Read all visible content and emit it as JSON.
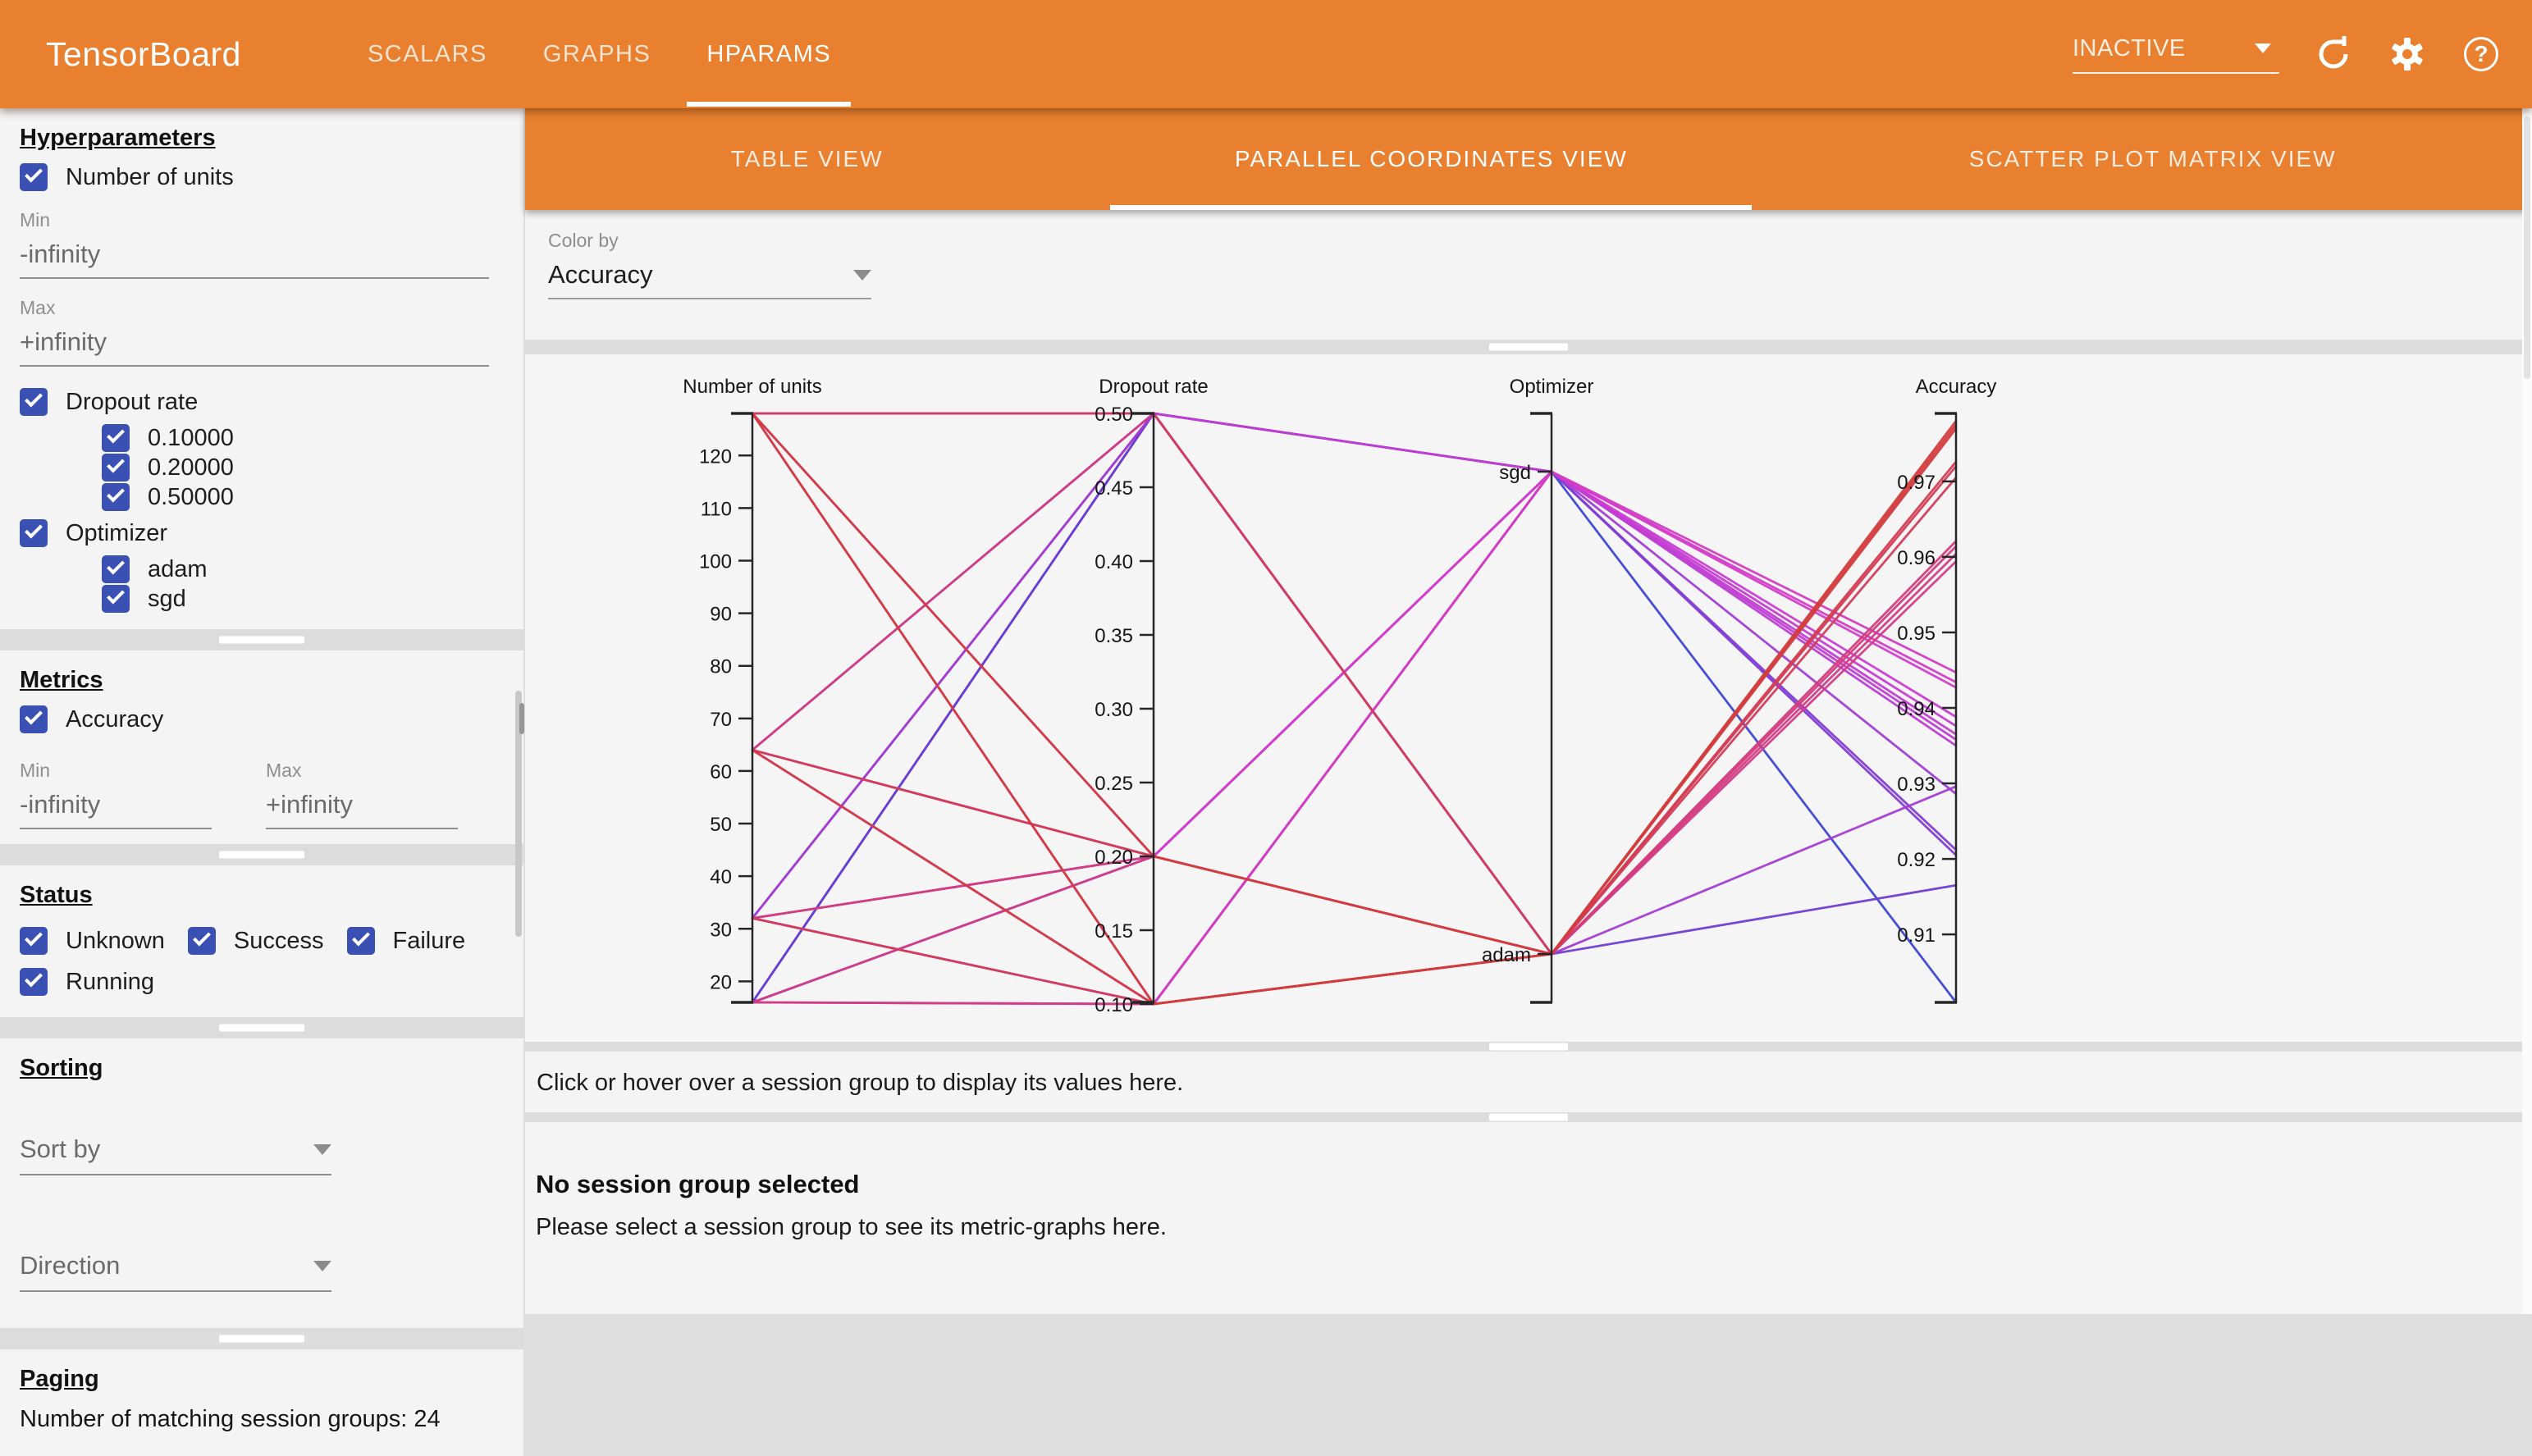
{
  "topbar": {
    "logo": "TensorBoard",
    "tabs": [
      {
        "label": "SCALARS",
        "active": false
      },
      {
        "label": "GRAPHS",
        "active": false
      },
      {
        "label": "HPARAMS",
        "active": true
      }
    ],
    "status_dropdown": {
      "value": "INACTIVE"
    },
    "help_glyph": "?",
    "accent_color": "#e8802f"
  },
  "sidebar": {
    "hyperparameters": {
      "title": "Hyperparameters",
      "number_of_units": {
        "label": "Number of units",
        "checked": true
      },
      "min_field": {
        "label": "Min",
        "value": "-infinity"
      },
      "max_field": {
        "label": "Max",
        "value": "+infinity"
      },
      "dropout": {
        "label": "Dropout rate",
        "checked": true,
        "values": [
          "0.10000",
          "0.20000",
          "0.50000"
        ]
      },
      "optimizer": {
        "label": "Optimizer",
        "checked": true,
        "values": [
          "adam",
          "sgd"
        ]
      }
    },
    "metrics": {
      "title": "Metrics",
      "accuracy": {
        "label": "Accuracy",
        "checked": true
      },
      "min_field": {
        "label": "Min",
        "value": "-infinity"
      },
      "max_field": {
        "label": "Max",
        "value": "+infinity"
      }
    },
    "status": {
      "title": "Status",
      "options": [
        {
          "label": "Unknown",
          "checked": true
        },
        {
          "label": "Success",
          "checked": true
        },
        {
          "label": "Failure",
          "checked": true
        },
        {
          "label": "Running",
          "checked": true
        }
      ]
    },
    "sorting": {
      "title": "Sorting",
      "sort_by": {
        "label": "Sort by"
      },
      "direction": {
        "label": "Direction"
      }
    },
    "paging": {
      "title": "Paging",
      "text": "Number of matching session groups: 24"
    }
  },
  "main": {
    "view_tabs": [
      {
        "label": "TABLE VIEW",
        "active": false
      },
      {
        "label": "PARALLEL COORDINATES VIEW",
        "active": true
      },
      {
        "label": "SCATTER PLOT MATRIX VIEW",
        "active": false
      }
    ],
    "color_by": {
      "label": "Color by",
      "value": "Accuracy"
    },
    "info_bar": "Click or hover over a session group to display its values here.",
    "detail": {
      "title": "No session group selected",
      "body": "Please select a session group to see its metric-graphs here."
    }
  },
  "chart_data": {
    "type": "parallel_coordinates",
    "color_by": "Accuracy",
    "colormap": {
      "low_color_hue": 236,
      "high_color_hue": 360,
      "min_value": 0.901,
      "max_value": 0.978
    },
    "axes": [
      {
        "name": "Number of units",
        "type": "numeric",
        "domain": [
          16,
          128
        ],
        "tick_values": [
          20,
          30,
          40,
          50,
          60,
          70,
          80,
          90,
          100,
          110,
          120
        ],
        "tick_labels": [
          "20",
          "30",
          "40",
          "50",
          "60",
          "70",
          "80",
          "90",
          "100",
          "110",
          "120"
        ]
      },
      {
        "name": "Dropout rate",
        "type": "numeric",
        "domain": [
          0.1,
          0.5
        ],
        "tick_values": [
          0.1,
          0.15,
          0.2,
          0.25,
          0.3,
          0.35,
          0.4,
          0.45,
          0.5
        ],
        "tick_labels": [
          "0.10",
          "0.15",
          "0.20",
          "0.25",
          "0.30",
          "0.35",
          "0.40",
          "0.45",
          "0.50"
        ]
      },
      {
        "name": "Optimizer",
        "type": "categorical",
        "categories": [
          "sgd",
          "adam"
        ]
      },
      {
        "name": "Accuracy",
        "type": "numeric",
        "domain": [
          0.901,
          0.979
        ],
        "tick_values": [
          0.91,
          0.92,
          0.93,
          0.94,
          0.95,
          0.96,
          0.97
        ],
        "tick_labels": [
          "0.91",
          "0.92",
          "0.93",
          "0.94",
          "0.95",
          "0.96",
          "0.97"
        ]
      }
    ],
    "sessions": [
      {
        "units": 128,
        "dropout": 0.1,
        "optimizer": "adam",
        "accuracy": 0.978
      },
      {
        "units": 128,
        "dropout": 0.2,
        "optimizer": "adam",
        "accuracy": 0.9775
      },
      {
        "units": 64,
        "dropout": 0.1,
        "optimizer": "adam",
        "accuracy": 0.977
      },
      {
        "units": 64,
        "dropout": 0.2,
        "optimizer": "adam",
        "accuracy": 0.9726
      },
      {
        "units": 32,
        "dropout": 0.1,
        "optimizer": "adam",
        "accuracy": 0.972
      },
      {
        "units": 128,
        "dropout": 0.5,
        "optimizer": "adam",
        "accuracy": 0.9705
      },
      {
        "units": 32,
        "dropout": 0.2,
        "optimizer": "adam",
        "accuracy": 0.9621
      },
      {
        "units": 16,
        "dropout": 0.1,
        "optimizer": "adam",
        "accuracy": 0.9614
      },
      {
        "units": 64,
        "dropout": 0.5,
        "optimizer": "adam",
        "accuracy": 0.9604
      },
      {
        "units": 16,
        "dropout": 0.2,
        "optimizer": "adam",
        "accuracy": 0.9594
      },
      {
        "units": 32,
        "dropout": 0.5,
        "optimizer": "adam",
        "accuracy": 0.9296
      },
      {
        "units": 16,
        "dropout": 0.5,
        "optimizer": "adam",
        "accuracy": 0.9165
      },
      {
        "units": 128,
        "dropout": 0.1,
        "optimizer": "sgd",
        "accuracy": 0.9447
      },
      {
        "units": 64,
        "dropout": 0.1,
        "optimizer": "sgd",
        "accuracy": 0.9434
      },
      {
        "units": 128,
        "dropout": 0.2,
        "optimizer": "sgd",
        "accuracy": 0.9427
      },
      {
        "units": 64,
        "dropout": 0.2,
        "optimizer": "sgd",
        "accuracy": 0.9388
      },
      {
        "units": 32,
        "dropout": 0.1,
        "optimizer": "sgd",
        "accuracy": 0.9376
      },
      {
        "units": 128,
        "dropout": 0.5,
        "optimizer": "sgd",
        "accuracy": 0.9365
      },
      {
        "units": 32,
        "dropout": 0.2,
        "optimizer": "sgd",
        "accuracy": 0.9358
      },
      {
        "units": 16,
        "dropout": 0.1,
        "optimizer": "sgd",
        "accuracy": 0.935
      },
      {
        "units": 64,
        "dropout": 0.5,
        "optimizer": "sgd",
        "accuracy": 0.9286
      },
      {
        "units": 32,
        "dropout": 0.5,
        "optimizer": "sgd",
        "accuracy": 0.9212
      },
      {
        "units": 16,
        "dropout": 0.2,
        "optimizer": "sgd",
        "accuracy": 0.9205
      },
      {
        "units": 16,
        "dropout": 0.5,
        "optimizer": "sgd",
        "accuracy": 0.901
      }
    ]
  }
}
